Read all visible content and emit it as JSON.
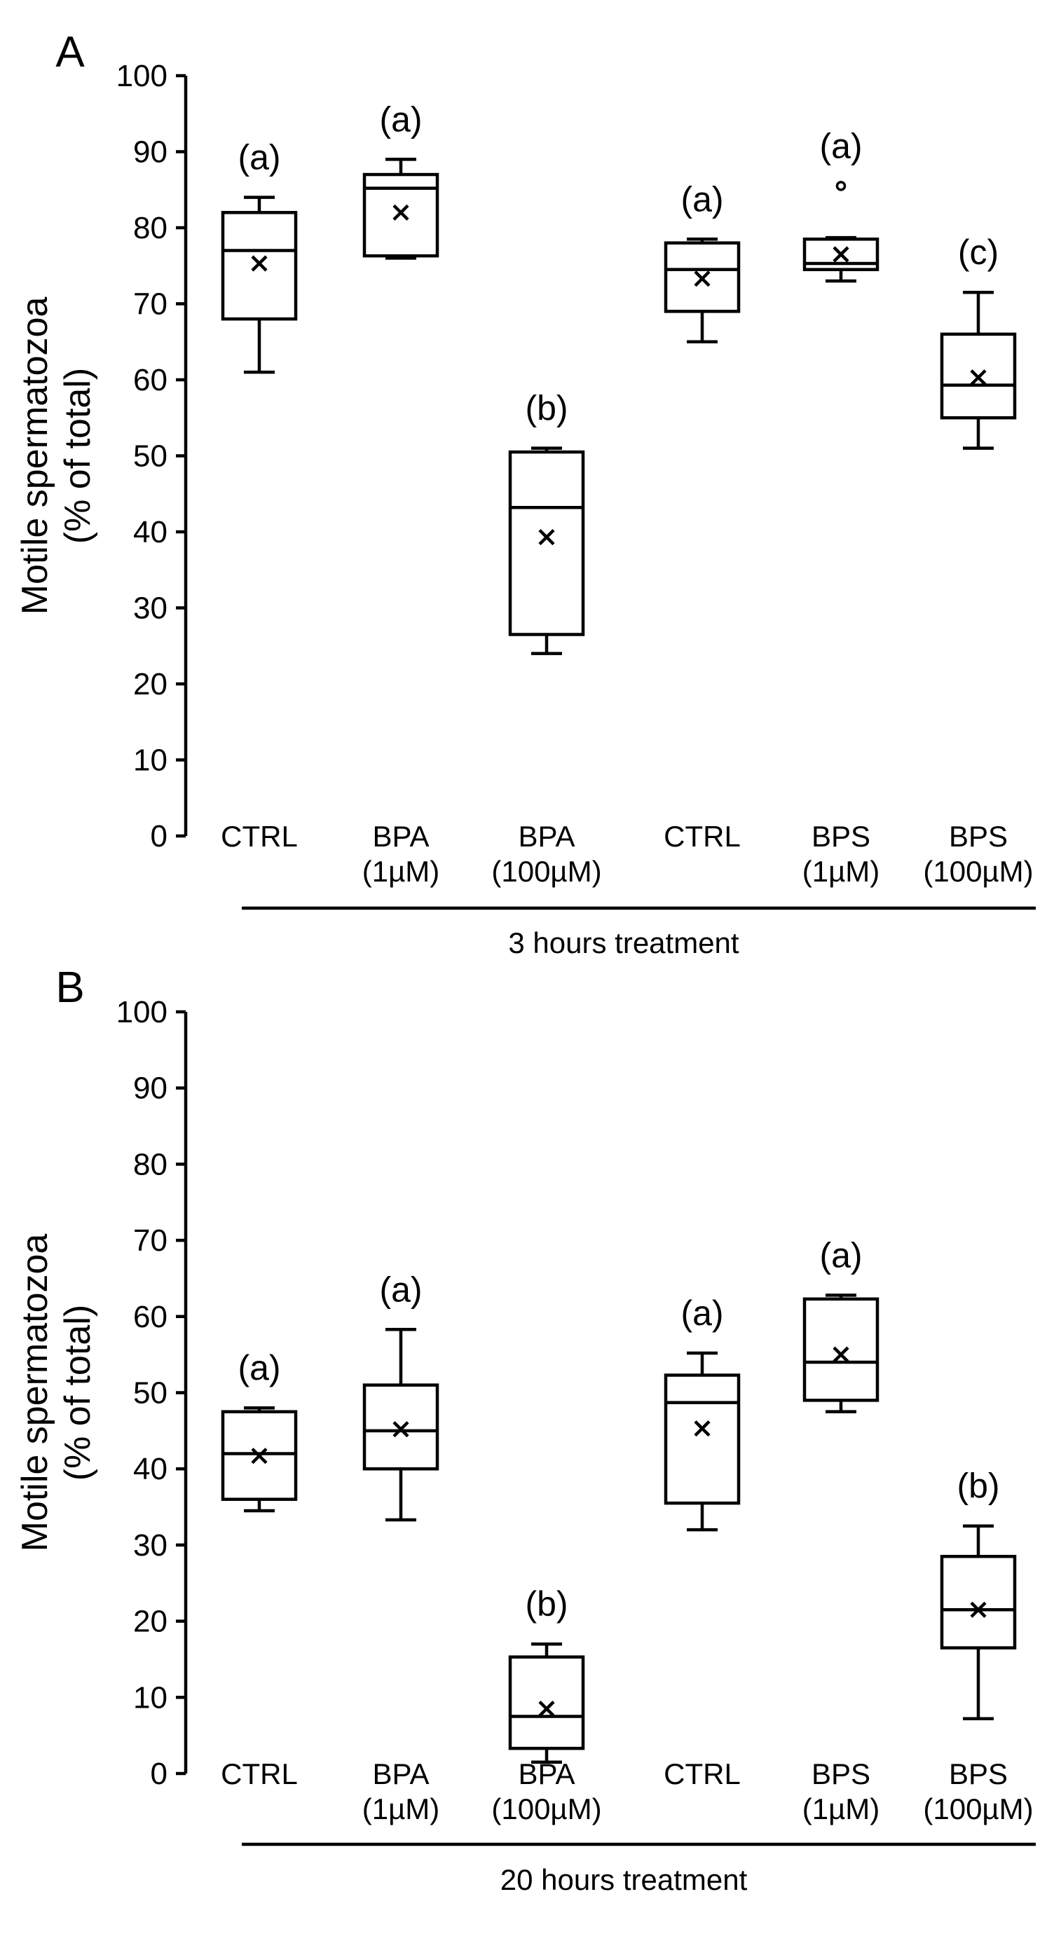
{
  "chart_data": [
    {
      "type": "boxplot",
      "panel_label": "A",
      "ylabel_line1": "Motile spermatozoa",
      "ylabel_line2": "(% of total)",
      "ylim": [
        0,
        100
      ],
      "yticks": [
        0,
        10,
        20,
        30,
        40,
        50,
        60,
        70,
        80,
        90,
        100
      ],
      "treatment_label": "3 hours treatment",
      "groups": [
        {
          "label_line1": "CTRL",
          "label_line2": "",
          "significance": "(a)",
          "min": 61,
          "q1": 68,
          "median": 77,
          "q3": 82,
          "max": 84,
          "mean": 75.3,
          "outliers": []
        },
        {
          "label_line1": "BPA",
          "label_line2": "(1µM)",
          "significance": "(a)",
          "min": 76,
          "q1": 76.3,
          "median": 85.2,
          "q3": 87,
          "max": 89,
          "mean": 82,
          "outliers": []
        },
        {
          "label_line1": "BPA",
          "label_line2": "(100µM)",
          "significance": "(b)",
          "min": 24,
          "q1": 26.5,
          "median": 43.2,
          "q3": 50.5,
          "max": 51,
          "mean": 39.3,
          "outliers": []
        },
        {
          "label_line1": "CTRL",
          "label_line2": "",
          "significance": "(a)",
          "min": 65,
          "q1": 69,
          "median": 74.5,
          "q3": 78,
          "max": 78.5,
          "mean": 73.3,
          "outliers": []
        },
        {
          "label_line1": "BPS",
          "label_line2": "(1µM)",
          "significance": "(a)",
          "min": 73,
          "q1": 74.5,
          "median": 75.3,
          "q3": 78.5,
          "max": 78.7,
          "mean": 76.5,
          "outliers": [
            85.5
          ]
        },
        {
          "label_line1": "BPS",
          "label_line2": "(100µM)",
          "significance": "(c)",
          "min": 51,
          "q1": 55,
          "median": 59.3,
          "q3": 66,
          "max": 71.5,
          "mean": 60.3,
          "outliers": []
        }
      ]
    },
    {
      "type": "boxplot",
      "panel_label": "B",
      "ylabel_line1": "Motile spermatozoa",
      "ylabel_line2": "(% of total)",
      "ylim": [
        0,
        100
      ],
      "yticks": [
        0,
        10,
        20,
        30,
        40,
        50,
        60,
        70,
        80,
        90,
        100
      ],
      "treatment_label": "20 hours treatment",
      "groups": [
        {
          "label_line1": "CTRL",
          "label_line2": "",
          "significance": "(a)",
          "min": 34.5,
          "q1": 36,
          "median": 42,
          "q3": 47.5,
          "max": 48,
          "mean": 41.7,
          "outliers": []
        },
        {
          "label_line1": "BPA",
          "label_line2": "(1µM)",
          "significance": "(a)",
          "min": 33.3,
          "q1": 40,
          "median": 45,
          "q3": 51,
          "max": 58.3,
          "mean": 45.2,
          "outliers": []
        },
        {
          "label_line1": "BPA",
          "label_line2": "(100µM)",
          "significance": "(b)",
          "min": 1.5,
          "q1": 3.3,
          "median": 7.5,
          "q3": 15.3,
          "max": 17,
          "mean": 8.5,
          "outliers": []
        },
        {
          "label_line1": "CTRL",
          "label_line2": "",
          "significance": "(a)",
          "min": 32,
          "q1": 35.5,
          "median": 48.7,
          "q3": 52.3,
          "max": 55.2,
          "mean": 45.3,
          "outliers": []
        },
        {
          "label_line1": "BPS",
          "label_line2": "(1µM)",
          "significance": "(a)",
          "min": 47.5,
          "q1": 49,
          "median": 54,
          "q3": 62.3,
          "max": 62.8,
          "mean": 55,
          "outliers": []
        },
        {
          "label_line1": "BPS",
          "label_line2": "(100µM)",
          "significance": "(b)",
          "min": 7.2,
          "q1": 16.5,
          "median": 21.5,
          "q3": 28.5,
          "max": 32.5,
          "mean": 21.5,
          "outliers": []
        }
      ]
    }
  ]
}
